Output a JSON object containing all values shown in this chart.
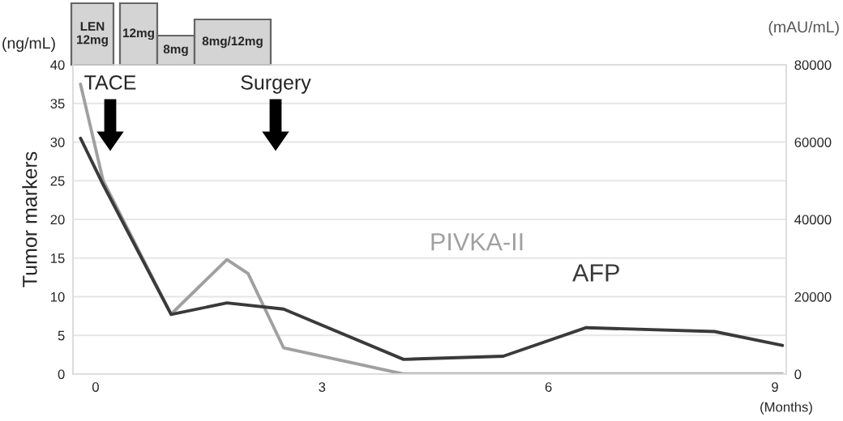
{
  "chart_data": {
    "type": "line",
    "ylabel": "Tumor markers",
    "xlabel": "(Months)",
    "series": [
      {
        "name": "AFP",
        "color": "#3a3a3a",
        "x": [
          -0.2,
          0.1,
          1.0,
          1.74,
          2.49,
          4.08,
          5.4,
          6.5,
          8.2,
          9.1
        ],
        "values": [
          30.5,
          24.5,
          7.7,
          9.2,
          8.4,
          1.9,
          2.3,
          6.0,
          5.5,
          3.7
        ]
      },
      {
        "name": "PIVKA-II",
        "color": "#a0a0a0",
        "axis": "y2",
        "x": [
          -0.2,
          0.1,
          1.0,
          1.74,
          2.02,
          2.49,
          4.08,
          9.1
        ],
        "values": [
          75000,
          50000,
          15500,
          29600,
          26000,
          6800,
          0,
          0
        ]
      }
    ],
    "xlim": [
      -0.3,
      9.15
    ],
    "xticks": [
      0,
      3,
      6,
      9
    ],
    "ylim": [
      0,
      40
    ],
    "yticks": [
      0,
      5,
      10,
      15,
      20,
      25,
      30,
      35,
      40
    ],
    "y2lim": [
      0,
      80000
    ],
    "y2ticks": [
      0,
      {
        "value": 10000,
        "label": null
      },
      20000,
      {
        "value": 30000,
        "label": null
      },
      40000,
      {
        "value": 50000,
        "label": null
      },
      60000,
      {
        "value": 70000,
        "label": null
      },
      80000
    ],
    "grid": "y",
    "legend": false,
    "marker": "none",
    "line_style": "solid",
    "annotations": [
      "(ng/mL)",
      "(mAU/mL)",
      "LEN\n12mg",
      "12mg",
      "8mg",
      "8mg/12mg",
      "TACE",
      "Surgery"
    ]
  }
}
